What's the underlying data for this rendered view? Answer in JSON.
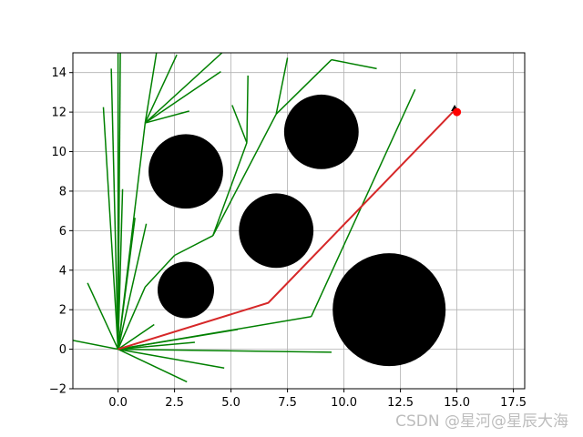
{
  "chart_data": {
    "type": "line",
    "title": "",
    "xlabel": "",
    "ylabel": "",
    "xlim": [
      -2,
      18
    ],
    "ylim": [
      -2,
      15
    ],
    "grid": true,
    "xticks": [
      0.0,
      2.5,
      5.0,
      7.5,
      10.0,
      12.5,
      15.0,
      17.5
    ],
    "xtick_labels": [
      "0.0",
      "2.5",
      "5.0",
      "7.5",
      "10.0",
      "12.5",
      "15.0",
      "17.5"
    ],
    "yticks": [
      -2,
      0,
      2,
      4,
      6,
      8,
      10,
      12,
      14
    ],
    "ytick_labels": [
      "−2",
      "0",
      "2",
      "4",
      "6",
      "8",
      "10",
      "12",
      "14"
    ],
    "obstacles": [
      {
        "cx": 3,
        "cy": 3,
        "r": 1.25
      },
      {
        "cx": 3,
        "cy": 9,
        "r": 1.65
      },
      {
        "cx": 7,
        "cy": 6,
        "r": 1.65
      },
      {
        "cx": 9,
        "cy": 11,
        "r": 1.65
      },
      {
        "cx": 12,
        "cy": 2,
        "r": 2.5
      }
    ],
    "series": [
      {
        "role": "tree",
        "color": "#008000",
        "segments": [
          [
            [
              0,
              0
            ],
            [
              -2,
              0.45
            ]
          ],
          [
            [
              0,
              0
            ],
            [
              -1.35,
              3.35
            ]
          ],
          [
            [
              0,
              0
            ],
            [
              -0.65,
              12.25
            ]
          ],
          [
            [
              0,
              0
            ],
            [
              -0.3,
              14.2
            ]
          ],
          [
            [
              0,
              0
            ],
            [
              0,
              15
            ]
          ],
          [
            [
              0,
              0
            ],
            [
              0.1,
              15
            ]
          ],
          [
            [
              0,
              0
            ],
            [
              0.2,
              8.1
            ]
          ],
          [
            [
              0,
              0
            ],
            [
              0.75,
              6.65
            ]
          ],
          [
            [
              0,
              0
            ],
            [
              1.25,
              6.35
            ]
          ],
          [
            [
              0,
              0
            ],
            [
              1.6,
              1.25
            ]
          ],
          [
            [
              0,
              0
            ],
            [
              3.4,
              0.35
            ]
          ],
          [
            [
              0,
              0
            ],
            [
              4.7,
              -0.95
            ]
          ],
          [
            [
              0,
              0
            ],
            [
              3.05,
              -1.65
            ]
          ],
          [
            [
              0,
              0
            ],
            [
              9.45,
              -0.15
            ]
          ],
          [
            [
              0,
              0
            ],
            [
              5.3,
              1.0
            ]
          ],
          [
            [
              0,
              0
            ],
            [
              8.55,
              1.65
            ]
          ],
          [
            [
              0,
              0
            ],
            [
              1.2,
              3.15
            ]
          ],
          [
            [
              0,
              0
            ],
            [
              1.2,
              11.45
            ]
          ],
          [
            [
              1.2,
              11.45
            ],
            [
              1.7,
              15
            ]
          ],
          [
            [
              1.2,
              11.45
            ],
            [
              2.6,
              14.9
            ]
          ],
          [
            [
              1.2,
              11.45
            ],
            [
              4.55,
              14.05
            ]
          ],
          [
            [
              1.2,
              11.45
            ],
            [
              3.15,
              12.05
            ]
          ],
          [
            [
              1.2,
              11.45
            ],
            [
              4.6,
              15
            ]
          ],
          [
            [
              1.2,
              3.15
            ],
            [
              2.5,
              4.75
            ]
          ],
          [
            [
              2.5,
              4.75
            ],
            [
              4.2,
              5.75
            ]
          ],
          [
            [
              4.2,
              5.75
            ],
            [
              5.7,
              10.45
            ]
          ],
          [
            [
              5.7,
              10.45
            ],
            [
              5.05,
              12.35
            ]
          ],
          [
            [
              5.7,
              10.45
            ],
            [
              5.75,
              13.85
            ]
          ],
          [
            [
              4.2,
              5.75
            ],
            [
              7.0,
              11.9
            ]
          ],
          [
            [
              7.0,
              11.9
            ],
            [
              7.5,
              14.75
            ]
          ],
          [
            [
              7.0,
              11.9
            ],
            [
              9.45,
              14.65
            ]
          ],
          [
            [
              9.45,
              14.65
            ],
            [
              11.45,
              14.2
            ]
          ],
          [
            [
              8.55,
              1.65
            ],
            [
              13.15,
              13.15
            ]
          ]
        ]
      },
      {
        "role": "path",
        "color": "#d62728",
        "points": [
          [
            0,
            0
          ],
          [
            6.65,
            2.35
          ],
          [
            14.9,
            12.1
          ],
          [
            15,
            12
          ]
        ]
      }
    ],
    "markers": [
      {
        "shape": "triangle",
        "color": "#000000",
        "x": 14.9,
        "y": 12.1
      },
      {
        "shape": "circle",
        "color": "#ff0000",
        "x": 15,
        "y": 12
      }
    ]
  },
  "watermark": "CSDN @星河@星辰大海"
}
